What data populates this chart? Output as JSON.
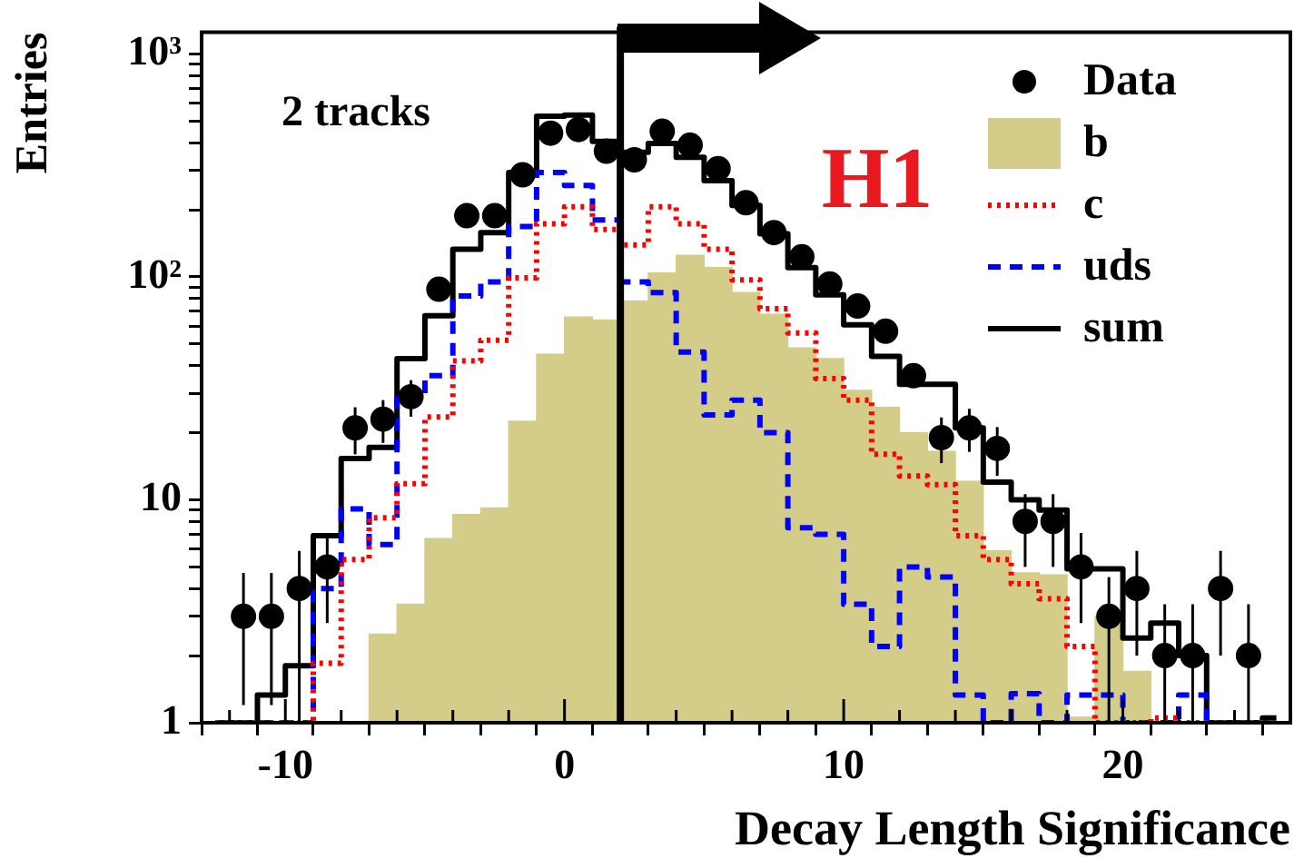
{
  "chart_data": {
    "type": "histogram",
    "xlabel": "Decay Length Significance",
    "ylabel": "Entries",
    "annotations": [
      "2 tracks",
      "H1"
    ],
    "bins": [
      -13,
      -12,
      -11,
      -10,
      -9,
      -8,
      -7,
      -6,
      -5,
      -4,
      -3,
      -2,
      -1,
      0,
      1,
      2,
      3,
      4,
      5,
      6,
      7,
      8,
      9,
      10,
      11,
      12,
      13,
      14,
      15,
      16,
      17,
      18,
      19,
      20,
      21,
      22,
      23,
      24,
      25,
      26
    ],
    "series": [
      {
        "name": "Data",
        "type": "scatter",
        "color": "#000000",
        "marker": "circle",
        "x": [
          -11.5,
          -10.5,
          -9.5,
          -8.5,
          -7.5,
          -6.5,
          -5.5,
          -4.5,
          -3.5,
          -2.5,
          -1.5,
          -0.5,
          0.5,
          1.5,
          2.5,
          3.5,
          4.5,
          5.5,
          6.5,
          7.5,
          8.5,
          9.5,
          10.5,
          11.5,
          12.5,
          13.5,
          14.5,
          15.5,
          16.5,
          17.5,
          18.5,
          19.5,
          20.5,
          21.5,
          22.5,
          23.5,
          24.5
        ],
        "values": [
          3,
          3,
          4,
          5,
          21,
          23,
          29,
          88,
          188,
          188,
          287,
          441,
          458,
          366,
          335,
          450,
          390,
          306,
          215,
          158,
          123,
          93,
          74,
          57,
          36,
          19,
          21,
          17,
          8,
          8,
          5,
          3,
          4,
          2,
          2,
          4,
          2
        ],
        "errors": [
          [
            1.2,
            4.7
          ],
          [
            1.2,
            4.7
          ],
          [
            1.0,
            5.9
          ],
          [
            2.8,
            7.1
          ],
          5,
          5,
          5.4,
          null,
          null,
          null,
          null,
          null,
          null,
          null,
          null,
          null,
          null,
          null,
          null,
          null,
          null,
          null,
          null,
          null,
          null,
          4.4,
          4.6,
          [
            12.8,
            21.2
          ],
          [
            5.0,
            10.6
          ],
          [
            5.0,
            10.6
          ],
          [
            2.8,
            7.1
          ],
          [
            1.0,
            4.5
          ],
          [
            2.0,
            5.9
          ],
          [
            1.0,
            3.4
          ],
          [
            1.0,
            3.4
          ],
          [
            2.0,
            5.9
          ],
          [
            1.0,
            3.4
          ]
        ]
      },
      {
        "name": "b",
        "type": "histogram",
        "color": "#d4cd8a",
        "values": [
          null,
          null,
          null,
          null,
          null,
          null,
          2.5,
          3.4,
          6.7,
          8.6,
          9.2,
          22.5,
          45,
          66,
          64,
          78,
          104,
          125,
          110,
          85,
          68,
          48,
          43,
          31,
          26,
          20,
          16.5,
          12.1,
          5.9,
          4.7,
          4.6,
          1.06,
          3.0,
          1.7,
          null,
          null,
          null,
          null,
          null
        ]
      },
      {
        "name": "c",
        "type": "step",
        "color": "#ff0000",
        "line_style": "dotted",
        "x": [
          -12.5,
          -11.5,
          -10.5,
          -9.5,
          -8.5,
          -7.5,
          -6.5,
          -5.5,
          -4.5,
          -3.5,
          -2.5,
          -1.5,
          -0.5,
          0.5,
          1.5,
          2.5,
          3.5,
          4.5,
          5.5,
          6.5,
          7.5,
          8.5,
          9.5,
          10.5,
          11.5,
          12.5,
          13.5,
          14.5,
          15.5,
          16.5,
          17.5,
          18.5,
          19.5,
          20.5,
          21.5,
          22.5,
          23.5,
          24.5,
          25.5
        ],
        "values": [
          1,
          1,
          1,
          1,
          1.85,
          5.4,
          8.3,
          11.8,
          23.5,
          42,
          52,
          99,
          173,
          206,
          163,
          139,
          206,
          173,
          133,
          97,
          72,
          56,
          35,
          28,
          16,
          12.8,
          11.7,
          6.9,
          5.4,
          4.2,
          3.6,
          2.2,
          1,
          1,
          1.05,
          1,
          1,
          1,
          1
        ]
      },
      {
        "name": "uds",
        "type": "step",
        "color": "#0000ff",
        "line_style": "dashed",
        "x": [
          -12.5,
          -11.5,
          -10.5,
          -9.5,
          -8.5,
          -7.5,
          -6.5,
          -5.5,
          -4.5,
          -3.5,
          -2.5,
          -1.5,
          -0.5,
          0.5,
          1.5,
          2.5,
          3.5,
          4.5,
          5.5,
          6.5,
          7.5,
          8.5,
          9.5,
          10.5,
          11.5,
          12.5,
          13.5,
          14.5,
          15.5,
          16.5,
          17.5,
          18.5,
          19.5,
          20.5,
          21.5,
          22.5,
          23.5,
          24.5,
          25.5
        ],
        "values": [
          1,
          1,
          1,
          1,
          4.0,
          9.1,
          6.3,
          30,
          36,
          82,
          95,
          168,
          294,
          257,
          180,
          95,
          85,
          46,
          24,
          28,
          20,
          7.5,
          7.0,
          3.4,
          2.2,
          5.0,
          4.5,
          1.33,
          1,
          1.35,
          1,
          1.33,
          1.33,
          1,
          1,
          1.33,
          1,
          1,
          1
        ]
      },
      {
        "name": "sum",
        "type": "step",
        "color": "#000000",
        "line_style": "solid",
        "x": [
          -12.5,
          -11.5,
          -10.5,
          -9.5,
          -8.5,
          -7.5,
          -6.5,
          -5.5,
          -4.5,
          -3.5,
          -2.5,
          -1.5,
          -0.5,
          0.5,
          1.5,
          2.5,
          3.5,
          4.5,
          5.5,
          6.5,
          7.5,
          8.5,
          9.5,
          10.5,
          11.5,
          12.5,
          13.5,
          14.5,
          15.5,
          16.5,
          17.5,
          18.5,
          19.5,
          20.5,
          21.5,
          22.5,
          23.5,
          24.5,
          25.5
        ],
        "values": [
          1,
          1,
          1.33,
          1.8,
          6.9,
          15.3,
          17.2,
          43,
          67,
          133,
          158,
          294,
          525,
          532,
          405,
          362,
          397,
          344,
          270,
          209,
          156,
          110,
          83,
          61,
          44,
          33,
          33,
          21,
          12,
          10,
          9,
          4.9,
          4.9,
          2.4,
          2.8,
          2.0,
          1,
          1,
          1.05
        ]
      }
    ],
    "log": "y",
    "xlim": [
      -13,
      26
    ],
    "xticks": [
      {
        "value": -12,
        "label": null
      },
      -10,
      {
        "value": -8,
        "label": null
      },
      {
        "value": -6,
        "label": null
      },
      {
        "value": -4,
        "label": null
      },
      {
        "value": -2,
        "label": null
      },
      0,
      {
        "value": 2,
        "label": null
      },
      {
        "value": 4,
        "label": null
      },
      {
        "value": 6,
        "label": null
      },
      {
        "value": 8,
        "label": null
      },
      10,
      {
        "value": 12,
        "label": null
      },
      {
        "value": 14,
        "label": null
      },
      {
        "value": 16,
        "label": null
      },
      {
        "value": 18,
        "label": null
      },
      20,
      {
        "value": 22,
        "label": null
      },
      {
        "value": 24,
        "label": null
      }
    ],
    "ylim": [
      1,
      1250
    ],
    "yticks": [
      1,
      {
        "value": 2,
        "label": null
      },
      {
        "value": 3,
        "label": null
      },
      {
        "value": 4,
        "label": null
      },
      {
        "value": 5,
        "label": null
      },
      {
        "value": 6,
        "label": null
      },
      {
        "value": 7,
        "label": null
      },
      {
        "value": 8,
        "label": null
      },
      {
        "value": 9,
        "label": null
      },
      10,
      {
        "value": 20,
        "label": null
      },
      {
        "value": 30,
        "label": null
      },
      {
        "value": 40,
        "label": null
      },
      {
        "value": 50,
        "label": null
      },
      {
        "value": 60,
        "label": null
      },
      {
        "value": 70,
        "label": null
      },
      {
        "value": 80,
        "label": null
      },
      {
        "value": 90,
        "label": null
      },
      {
        "value": 100,
        "label": "10²"
      },
      {
        "value": 200,
        "label": null
      },
      {
        "value": 300,
        "label": null
      },
      {
        "value": 400,
        "label": null
      },
      {
        "value": 500,
        "label": null
      },
      {
        "value": 600,
        "label": null
      },
      {
        "value": 700,
        "label": null
      },
      {
        "value": 800,
        "label": null
      },
      {
        "value": 900,
        "label": null
      },
      {
        "value": 1000,
        "label": "10³"
      }
    ],
    "ref_lines": [
      {
        "axis": "x",
        "value": 2,
        "color": "#000000"
      }
    ],
    "legend": "top right"
  }
}
